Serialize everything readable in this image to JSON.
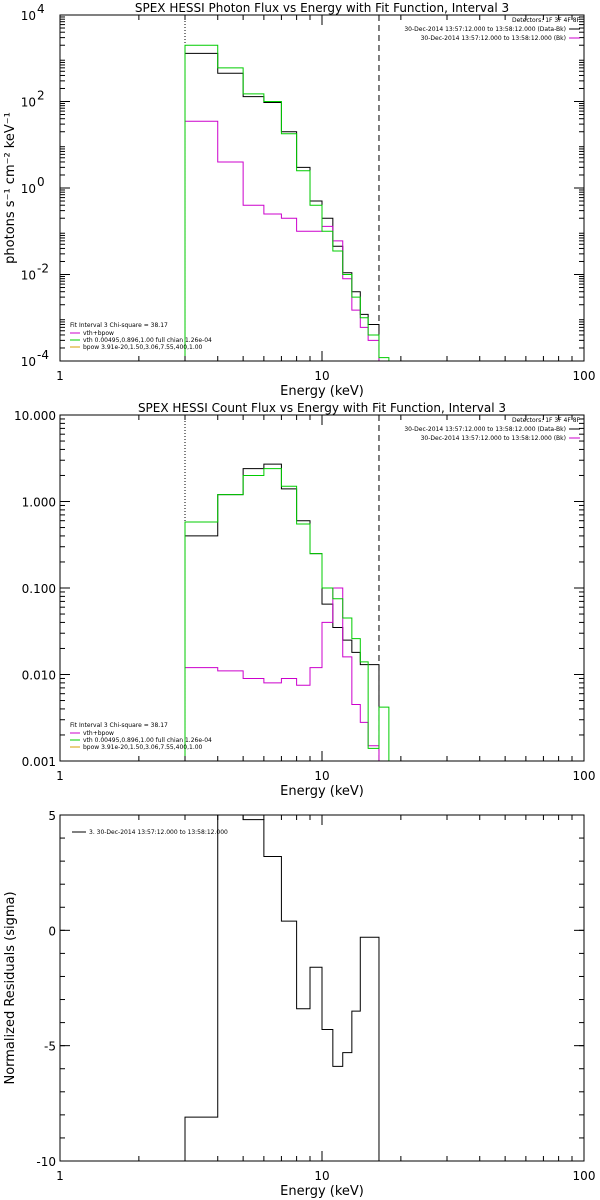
{
  "colors": {
    "background": "#ffffff",
    "axes": "#000000",
    "data_minus_bk": "#000000",
    "background_spectrum": "#cc00cc",
    "fit_total": "#cc00cc",
    "vth": "#00cc00",
    "bpow": "#d4a000"
  },
  "chart_data": [
    {
      "type": "line",
      "step": true,
      "title": "SPEX HESSI Photon Flux vs Energy with Fit Function, Interval 3",
      "xlabel": "Energy (keV)",
      "ylabel": "photons s⁻¹ cm⁻² keV⁻¹",
      "xscale": "log",
      "yscale": "log",
      "xlim": [
        1,
        100
      ],
      "ylim": [
        0.0001,
        10000
      ],
      "xticks": [
        {
          "value": 1,
          "label": "1"
        },
        {
          "value": 10,
          "label": "10"
        },
        {
          "value": 100,
          "label": "100"
        }
      ],
      "yticks": [
        {
          "value": 0.0001,
          "label": "10",
          "exp": "-4"
        },
        {
          "value": 0.01,
          "label": "10",
          "exp": "-2"
        },
        {
          "value": 1,
          "label": "10",
          "exp": "0"
        },
        {
          "value": 100,
          "label": "10",
          "exp": "2"
        },
        {
          "value": 10000,
          "label": "10",
          "exp": "4"
        }
      ],
      "vlines": [
        {
          "x": 3.0,
          "style": "dotted"
        },
        {
          "x": 16.5,
          "style": "dashed"
        }
      ],
      "legend_topright": {
        "header": "Detectors: 1F 3F 4F 8F",
        "items": [
          {
            "text": "30-Dec-2014 13:57:12.000 to 13:58:12.000 (Data-Bk)",
            "color": "#000000"
          },
          {
            "text": "30-Dec-2014 13:57:12.000 to 13:58:12.000 (Bk)",
            "color": "#cc00cc"
          }
        ]
      },
      "legend_bottomleft": {
        "header": "Fit Interval 3   Chi-square = 38.17",
        "items": [
          {
            "text": "vth+bpow",
            "color": "#cc00cc"
          },
          {
            "text": "vth 0.00495,0.896,1.00  full chian 1.26e-04",
            "color": "#00cc00"
          },
          {
            "text": "bpow 3.91e-20,1.50,3.06,7.55,400,1.00",
            "color": "#d4a000"
          }
        ]
      },
      "edges": [
        3.0,
        4.0,
        5.0,
        6.0,
        7.0,
        8.0,
        9.0,
        10.0,
        11.0,
        12.0,
        13.0,
        14.0,
        15.0,
        16.5,
        18.0
      ],
      "series": [
        {
          "key": "data",
          "color": "#000000",
          "values": [
            1300,
            450,
            130,
            95,
            20,
            3,
            0.5,
            0.2,
            0.045,
            0.011,
            0.004,
            0.0012,
            0.0007,
            null
          ]
        },
        {
          "key": "background",
          "color": "#cc00cc",
          "values": [
            35,
            4,
            0.4,
            0.25,
            0.2,
            0.1,
            0.1,
            0.13,
            0.06,
            0.008,
            0.0015,
            0.0006,
            0.0003,
            0.0001
          ]
        },
        {
          "key": "fit",
          "color": "#00cc00",
          "values": [
            2000,
            600,
            150,
            100,
            18,
            2.5,
            0.4,
            0.1,
            0.035,
            0.01,
            0.003,
            0.001,
            0.0004,
            0.00012
          ]
        }
      ]
    },
    {
      "type": "line",
      "step": true,
      "title": "SPEX HESSI Count Flux vs Energy with Fit Function, Interval 3",
      "xlabel": "Energy (keV)",
      "ylabel": "",
      "xscale": "log",
      "yscale": "log",
      "xlim": [
        1,
        100
      ],
      "ylim": [
        0.001,
        10
      ],
      "xticks": [
        {
          "value": 1,
          "label": "1"
        },
        {
          "value": 10,
          "label": "10"
        },
        {
          "value": 100,
          "label": "100"
        }
      ],
      "yticks": [
        {
          "value": 0.001,
          "label": "0.001"
        },
        {
          "value": 0.01,
          "label": "0.010"
        },
        {
          "value": 0.1,
          "label": "0.100"
        },
        {
          "value": 1,
          "label": "1.000"
        },
        {
          "value": 10,
          "label": "10.000"
        }
      ],
      "vlines": [
        {
          "x": 3.0,
          "style": "dotted"
        },
        {
          "x": 16.5,
          "style": "dashed"
        }
      ],
      "legend_topright": {
        "header": "Detectors: 1F 3F 4F 8F",
        "items": [
          {
            "text": "30-Dec-2014 13:57:12.000 to 13:58:12.000 (Data-Bk)",
            "color": "#000000"
          },
          {
            "text": "30-Dec-2014 13:57:12.000 to 13:58:12.000 (Bk)",
            "color": "#cc00cc"
          }
        ]
      },
      "legend_bottomleft": {
        "header": "Fit Interval 3   Chi-square = 38.17",
        "items": [
          {
            "text": "vth+bpow",
            "color": "#cc00cc"
          },
          {
            "text": "vth 0.00495,0.896,1.00  full chian 1.26e-04",
            "color": "#00cc00"
          },
          {
            "text": "bpow 3.91e-20,1.50,3.06,7.55,400,1.00",
            "color": "#d4a000"
          }
        ]
      },
      "edges": [
        3.0,
        4.0,
        5.0,
        6.0,
        7.0,
        8.0,
        9.0,
        10.0,
        11.0,
        12.0,
        13.0,
        14.0,
        15.0,
        16.5,
        18.0
      ],
      "series": [
        {
          "key": "data",
          "color": "#000000",
          "values": [
            0.4,
            1.2,
            2.4,
            2.7,
            1.4,
            0.6,
            0.25,
            0.065,
            0.035,
            0.025,
            0.018,
            0.013,
            0.013,
            null
          ]
        },
        {
          "key": "background",
          "color": "#cc00cc",
          "values": [
            0.012,
            0.011,
            0.009,
            0.008,
            0.009,
            0.0075,
            0.012,
            0.04,
            0.1,
            0.016,
            0.0045,
            0.0028,
            0.0015,
            0.001
          ]
        },
        {
          "key": "fit",
          "color": "#00cc00",
          "values": [
            0.58,
            1.2,
            2.0,
            2.4,
            1.5,
            0.55,
            0.25,
            0.1,
            0.075,
            0.045,
            0.026,
            0.014,
            0.0014,
            0.0042
          ]
        }
      ]
    },
    {
      "type": "line",
      "step": true,
      "title": "",
      "xlabel": "Energy (keV)",
      "ylabel": "Normalized Residuals (sigma)",
      "xscale": "log",
      "yscale": "linear",
      "xlim": [
        1,
        100
      ],
      "ylim": [
        -10,
        5
      ],
      "xticks": [
        {
          "value": 1,
          "label": "1"
        },
        {
          "value": 10,
          "label": "10"
        },
        {
          "value": 100,
          "label": "100"
        }
      ],
      "yticks": [
        {
          "value": -10,
          "label": "-10"
        },
        {
          "value": -5,
          "label": "-5"
        },
        {
          "value": 0,
          "label": "0"
        },
        {
          "value": 5,
          "label": "5"
        }
      ],
      "legend_topleft": {
        "items": [
          {
            "text": "3. 30-Dec-2014 13:57:12.000 to 13:58:12.000",
            "color": "#000000"
          }
        ]
      },
      "edges": [
        3.0,
        4.0,
        5.0,
        6.0,
        7.0,
        8.0,
        9.0,
        10.0,
        11.0,
        12.0,
        13.0,
        14.0,
        15.0,
        16.5
      ],
      "series": [
        {
          "key": "residuals",
          "color": "#000000",
          "values": [
            -8.1,
            5.0,
            4.8,
            3.2,
            0.4,
            -3.4,
            -1.6,
            -4.3,
            -5.9,
            -5.3,
            -3.5,
            -0.3,
            -0.3
          ]
        }
      ]
    }
  ]
}
